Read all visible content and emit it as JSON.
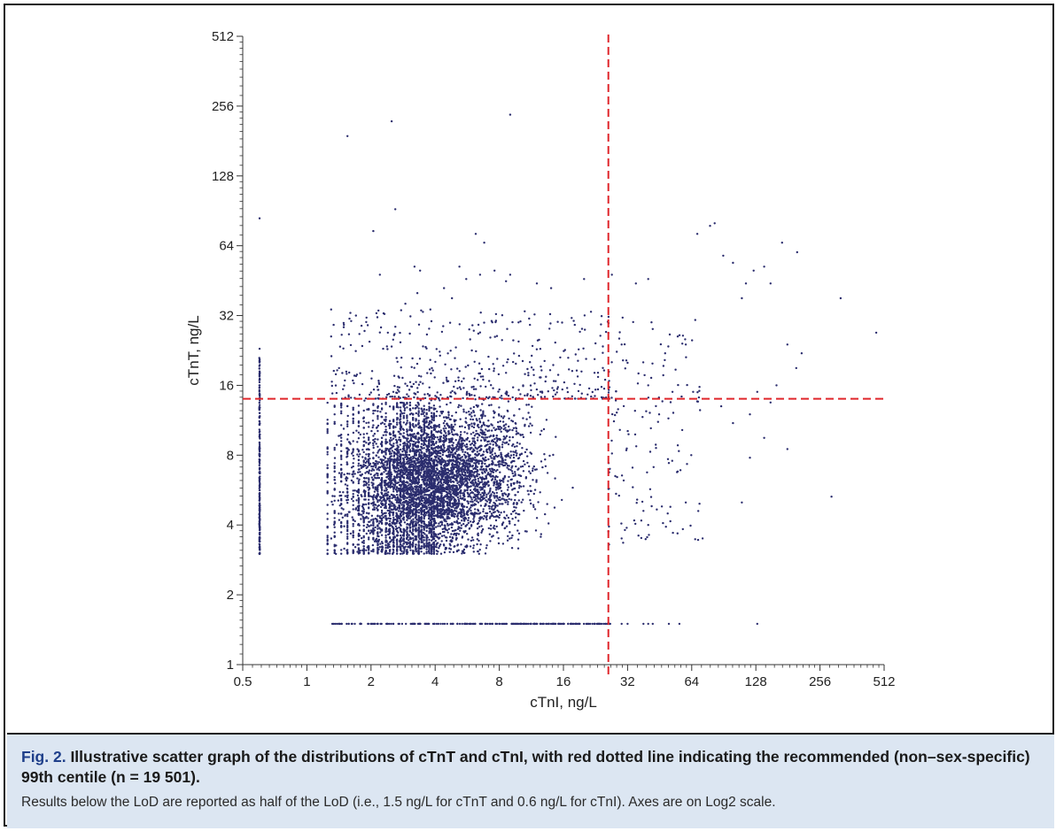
{
  "figure": {
    "label": "Fig. 2.",
    "title": "Illustrative scatter graph of the distributions of cTnT and cTnI, with red dotted line indicating the recommended (non–sex-specific) 99th centile (n = 19 501).",
    "note": "Results below the LoD are reported as half of the LoD (i.e., 1.5 ng/L for cTnT and 0.6 ng/L for cTnI). Axes are on Log2 scale."
  },
  "chart_data": {
    "type": "scatter",
    "title": "",
    "xlabel": "cTnI, ng/L",
    "ylabel": "cTnT, ng/L",
    "x_scale": "log2",
    "y_scale": "log2",
    "xlim": [
      0.5,
      512
    ],
    "ylim": [
      1,
      512
    ],
    "x_ticks": [
      "0.5",
      "1",
      "2",
      "4",
      "8",
      "16",
      "32",
      "64",
      "128",
      "256",
      "512"
    ],
    "y_ticks": [
      "1",
      "2",
      "4",
      "8",
      "16",
      "32",
      "64",
      "128",
      "256",
      "512"
    ],
    "grid": false,
    "n": 19501,
    "lod_reported": {
      "cTnT": 1.5,
      "cTnI": 0.6
    },
    "reference_lines": [
      {
        "orientation": "vertical",
        "axis": "x",
        "value": 26,
        "color": "#e0262b",
        "style": "dashed"
      },
      {
        "orientation": "horizontal",
        "axis": "y",
        "value": 14,
        "color": "#e0262b",
        "style": "dashed"
      }
    ],
    "point_color": "#2b2d6e",
    "outlier_points": [
      [
        0.6,
        84
      ],
      [
        1.55,
        190
      ],
      [
        2.5,
        220
      ],
      [
        9,
        235
      ],
      [
        2.6,
        92
      ],
      [
        2.05,
        74
      ],
      [
        6.2,
        72
      ],
      [
        6.8,
        66
      ],
      [
        2.2,
        48
      ],
      [
        3.2,
        52
      ],
      [
        3.4,
        50
      ],
      [
        5.2,
        52
      ],
      [
        7.6,
        50
      ],
      [
        9.0,
        48
      ],
      [
        8.6,
        45
      ],
      [
        5.6,
        46
      ],
      [
        6.5,
        48
      ],
      [
        12,
        44
      ],
      [
        14,
        42
      ],
      [
        20,
        46
      ],
      [
        27,
        48
      ],
      [
        35,
        44
      ],
      [
        40,
        46
      ],
      [
        68,
        72
      ],
      [
        78,
        78
      ],
      [
        82,
        80
      ],
      [
        90,
        58
      ],
      [
        100,
        54
      ],
      [
        115,
        44
      ],
      [
        125,
        50
      ],
      [
        140,
        52
      ],
      [
        170,
        66
      ],
      [
        200,
        60
      ],
      [
        150,
        44
      ],
      [
        110,
        38
      ],
      [
        320,
        38
      ],
      [
        470,
        27
      ],
      [
        210,
        22
      ],
      [
        180,
        24
      ],
      [
        198,
        19
      ],
      [
        160,
        16
      ],
      [
        120,
        12
      ],
      [
        100,
        11
      ],
      [
        140,
        9.5
      ],
      [
        180,
        8.5
      ],
      [
        120,
        7.8
      ],
      [
        110,
        5
      ],
      [
        290,
        5.3
      ],
      [
        60,
        5
      ],
      [
        72,
        3.5
      ],
      [
        55,
        6.8
      ],
      [
        50,
        7.4
      ],
      [
        38,
        4.6
      ],
      [
        40,
        4.0
      ],
      [
        36,
        3.6
      ],
      [
        30,
        3.5
      ],
      [
        28,
        6.5
      ],
      [
        45,
        12
      ],
      [
        70,
        12.5
      ],
      [
        88,
        13
      ],
      [
        150,
        13.5
      ],
      [
        55,
        26
      ],
      [
        60,
        24
      ],
      [
        48,
        22
      ],
      [
        42,
        28
      ],
      [
        34,
        30
      ],
      [
        30,
        24
      ],
      [
        32,
        20
      ],
      [
        36,
        18
      ],
      [
        40,
        16
      ],
      [
        52,
        15
      ],
      [
        65,
        15
      ],
      [
        130,
        15
      ],
      [
        0.6,
        23
      ],
      [
        1.3,
        34
      ],
      [
        1.3,
        26
      ],
      [
        1.7,
        32
      ],
      [
        1.9,
        30
      ],
      [
        2.4,
        27
      ],
      [
        2.9,
        36
      ],
      [
        3.3,
        40
      ],
      [
        4.4,
        42
      ],
      [
        4.8,
        38
      ],
      [
        3.8,
        34
      ]
    ],
    "cluster_description": [
      {
        "region": "cTnI at LoD (0.6)",
        "x": 0.6,
        "y_range": [
          3,
          21
        ]
      },
      {
        "region": "cTnT at LoD (1.5)",
        "y": 1.5,
        "x_range": [
          1.25,
          28
        ]
      },
      {
        "region": "main body",
        "x_range": [
          1.25,
          27
        ],
        "y_range": [
          3,
          30
        ]
      }
    ]
  }
}
